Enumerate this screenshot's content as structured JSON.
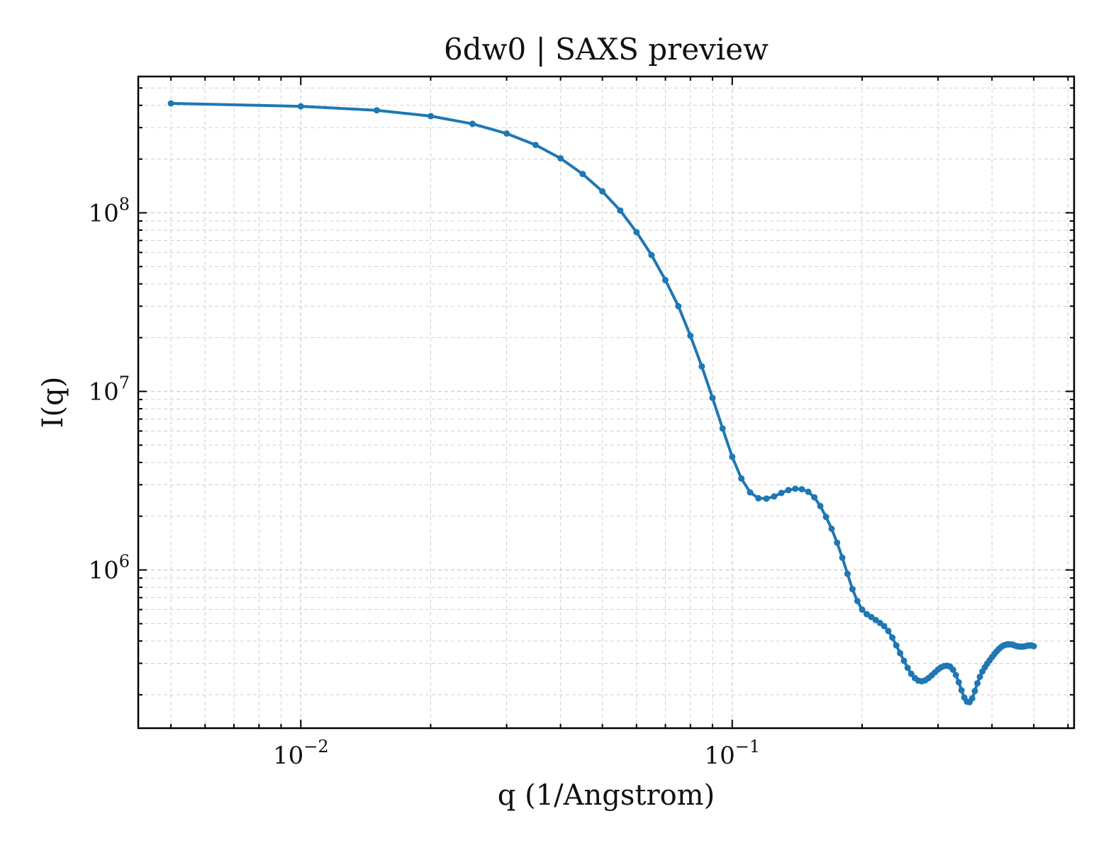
{
  "chart_data": {
    "type": "line",
    "title": "6dw0 | SAXS preview",
    "xlabel": "q (1/Angstrom)",
    "ylabel": "I(q)",
    "xscale": "log",
    "yscale": "log",
    "xlim": [
      0.0042,
      0.62
    ],
    "ylim": [
      130000,
      580000000
    ],
    "grid": true,
    "colors": {
      "series": "#1f77b4",
      "grid": "#d0d0d0",
      "axis": "#000000"
    },
    "x_ticks": [
      {
        "value": 0.01,
        "base": "10",
        "exp": "−2"
      },
      {
        "value": 0.1,
        "base": "10",
        "exp": "−1"
      }
    ],
    "y_ticks": [
      {
        "value": 1000000,
        "base": "10",
        "exp": "6"
      },
      {
        "value": 10000000,
        "base": "10",
        "exp": "7"
      },
      {
        "value": 100000000,
        "base": "10",
        "exp": "8"
      }
    ],
    "series": [
      {
        "marker": "dot",
        "x": [
          0.005,
          0.01,
          0.015,
          0.02,
          0.025,
          0.03,
          0.035,
          0.04,
          0.045,
          0.05,
          0.055,
          0.06,
          0.065,
          0.07,
          0.075,
          0.08,
          0.085,
          0.09,
          0.095,
          0.1,
          0.105,
          0.11,
          0.115,
          0.12,
          0.125,
          0.13,
          0.135,
          0.14,
          0.145,
          0.15,
          0.155,
          0.16,
          0.165,
          0.17,
          0.175,
          0.18,
          0.185,
          0.19,
          0.195,
          0.2,
          0.205,
          0.21,
          0.215,
          0.22,
          0.225,
          0.23,
          0.235,
          0.24,
          0.245,
          0.25,
          0.255,
          0.26,
          0.265,
          0.27,
          0.275,
          0.28,
          0.285,
          0.29,
          0.295,
          0.3,
          0.305,
          0.31,
          0.315,
          0.32,
          0.325,
          0.33,
          0.335,
          0.34,
          0.345,
          0.35,
          0.355,
          0.36,
          0.365,
          0.37,
          0.375,
          0.38,
          0.385,
          0.39,
          0.395,
          0.4,
          0.405,
          0.41,
          0.415,
          0.42,
          0.425,
          0.43,
          0.435,
          0.44,
          0.445,
          0.45,
          0.455,
          0.46,
          0.465,
          0.47,
          0.475,
          0.48,
          0.485,
          0.49,
          0.495,
          0.5
        ],
        "y": [
          410000000,
          395000000,
          375000000,
          348000000,
          315000000,
          278000000,
          240000000,
          202000000,
          165000000,
          132000000,
          103000000,
          78000000,
          58000000,
          42000000,
          30000000,
          20500000,
          13800000,
          9200000,
          6200000,
          4300000,
          3250000,
          2720000,
          2520000,
          2510000,
          2580000,
          2700000,
          2800000,
          2850000,
          2830000,
          2740000,
          2550000,
          2280000,
          1980000,
          1700000,
          1420000,
          1170000,
          950000,
          780000,
          670000,
          600000,
          565000,
          545000,
          525000,
          505000,
          485000,
          455000,
          418000,
          378000,
          342000,
          310000,
          283000,
          262000,
          248000,
          240000,
          238000,
          241000,
          248000,
          257000,
          267000,
          277000,
          285000,
          290000,
          291000,
          287000,
          276000,
          258000,
          235000,
          212000,
          193000,
          183000,
          182000,
          191000,
          210000,
          232000,
          252000,
          270000,
          285000,
          299000,
          312000,
          325000,
          338000,
          350000,
          361000,
          370000,
          377000,
          381000,
          383000,
          383000,
          382000,
          379000,
          375000,
          373000,
          372000,
          372000,
          373000,
          375000,
          377000,
          378000,
          377000,
          374000
        ]
      }
    ]
  }
}
